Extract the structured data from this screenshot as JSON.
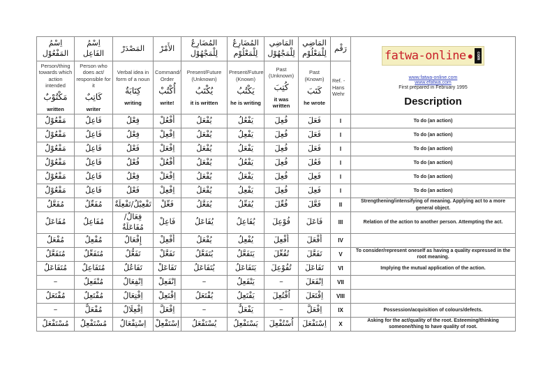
{
  "header_arabic": [
    "اِسْمُ المَفْعُوْل",
    "اِسْمُ الفَاعِل",
    "المَصْدَرْ",
    "الأَمْرْ",
    "المُضَارِعُ لِلْمَجْهُوْل",
    "المُضَارِعُ لِلْمَعْلُوْم",
    "المَاضِي لِلْمَجْهُوْل",
    "المَاضِي لِلْمَعْلُوْم",
    "رَقْم"
  ],
  "header_english": [
    "Person/thing towards which action intended",
    "Person who does act/ responsible for it",
    "Verbal idea in form of a noun",
    "Command/ Order",
    "Present/Future (Unknown)",
    "Present/Future (Known)",
    "Past (Unknown)",
    "Past (Known)"
  ],
  "example_arabic": [
    "مَكْتُوْبٌ",
    "كَاتِبٌ",
    "كِتَابَةٌ",
    "أُكْتُبْ",
    "يُكْتَبُ",
    "يَكْتُبُ",
    "كُتِبَ",
    "كَتَبَ"
  ],
  "example_english": [
    "written",
    "writer",
    "writing",
    "write!",
    "it is written",
    "he is writing",
    "it was written",
    "he wrote"
  ],
  "ref_label": "Ref. - Hans Wehr",
  "logo": {
    "text": "fatwa-online",
    "suffix": "com",
    "bg": "#f5efc0",
    "color": "#c8202a"
  },
  "links": [
    "www.fatwa-online.com",
    "www.efatwa.com"
  ],
  "first_prepared": "First prepared in February 1995",
  "description_title": "Description",
  "rows": [
    {
      "num": "I",
      "desc": "To do (an action)",
      "forms": [
        "مَفْعُوْلٌ",
        "فَاعِلٌ",
        "فِعْلٌ",
        "أُفْعُلْ",
        "يُفْعَلُ",
        "يَفْعُلُ",
        "فُعِلَ",
        "فَعَلَ"
      ]
    },
    {
      "num": "I",
      "desc": "To do (an action)",
      "forms": [
        "مَفْعُوْلٌ",
        "فَاعِلٌ",
        "فِعْلٌ",
        "اِفْعِلْ",
        "يُفْعَلُ",
        "يَفْعِلُ",
        "فُعِلَ",
        "فَعَلَ"
      ]
    },
    {
      "num": "I",
      "desc": "To do (an action)",
      "forms": [
        "مَفْعُوْلٌ",
        "فَاعِلٌ",
        "فَعْلٌ",
        "اِفْعَلْ",
        "يُفْعَلُ",
        "يَفْعَلُ",
        "فُعِلَ",
        "فَعَلَ"
      ]
    },
    {
      "num": "I",
      "desc": "To do (an action)",
      "forms": [
        "مَفْعُوْلٌ",
        "فَاعِلٌ",
        "فُعْلٌ",
        "أُفْعُلْ",
        "يُفْعَلُ",
        "يَفْعُلُ",
        "فُعِلَ",
        "فَعُلَ"
      ]
    },
    {
      "num": "I",
      "desc": "To do (an action)",
      "forms": [
        "مَفْعُوْلٌ",
        "فَاعِلٌ",
        "فِعْلٌ",
        "اِفْعَلْ",
        "يُفْعَلُ",
        "يَفْعَلُ",
        "فُعِلَ",
        "فَعِلَ"
      ]
    },
    {
      "num": "I",
      "desc": "To do (an action)",
      "forms": [
        "مَفْعُوْلٌ",
        "فَاعِلٌ",
        "فَعْلٌ",
        "اِفْعِلْ",
        "يُفْعَلُ",
        "يَفْعِلُ",
        "فُعِلَ",
        "فَعِلَ"
      ]
    },
    {
      "num": "II",
      "desc": "Strengthening/intensifying of meaning. Applying act to a more general object.",
      "forms": [
        "مُفَعَّلٌ",
        "مُفَعِّلٌ",
        "تَفْعِيْلٌ/تَفْعِلَةٌ",
        "فَعِّلْ",
        "يُفَعَّلُ",
        "يُفَعِّلُ",
        "فُعِّلَ",
        "فَعَّلَ"
      ]
    },
    {
      "num": "III",
      "desc": "Relation of the action to another person. Attempting the act.",
      "forms": [
        "مُفَاعَلٌ",
        "مُفَاعِلٌ",
        "فِعَالٌ/مُفَاعَلَةٌ",
        "فَاعِلْ",
        "يُفَاعَلُ",
        "يُفَاعِلُ",
        "فُوْعِلَ",
        "فَاعَلَ"
      ]
    },
    {
      "num": "IV",
      "desc": "",
      "forms": [
        "مُفْعَلٌ",
        "مُفْعِلٌ",
        "إِفْعَالٌ",
        "أَفْعِلْ",
        "يُفْعَلُ",
        "يُفْعِلُ",
        "أُفْعِلَ",
        "أَفْعَلَ"
      ]
    },
    {
      "num": "V",
      "desc": "To consider/represent oneself as having a quality expressed in the root meaning.",
      "forms": [
        "مُتَفَعَّلٌ",
        "مُتَفَعِّلٌ",
        "تَفَعُّلٌ",
        "تَفَعَّلْ",
        "يُتَفَعَّلُ",
        "يَتَفَعَّلُ",
        "تُفُعِّلَ",
        "تَفَعَّلَ"
      ]
    },
    {
      "num": "VI",
      "desc": "Implying the mutual application of the action.",
      "forms": [
        "مُتَفَاعَلٌ",
        "مُتَفَاعِلٌ",
        "تَفَاعُلٌ",
        "تَفَاعَلْ",
        "يُتَفَاعَلُ",
        "يَتَفَاعَلُ",
        "تُفُوْعِلَ",
        "تَفَاعَلَ"
      ]
    },
    {
      "num": "VII",
      "desc": "",
      "forms": [
        "–",
        "مُنْفَعِلٌ",
        "اِنْفِعَالٌ",
        "اِنْفَعِلْ",
        "–",
        "يَنْفَعِلُ",
        "–",
        "اِنْفَعَلَ"
      ]
    },
    {
      "num": "VIII",
      "desc": "",
      "forms": [
        "مُفْتَعَلٌ",
        "مُفْتَعِلٌ",
        "اِفْتِعَالٌ",
        "اِفْتَعِلْ",
        "يُفْتَعَلُ",
        "يَفْتَعِلُ",
        "اُفْتُعِلَ",
        "اِفْتَعَلَ"
      ]
    },
    {
      "num": "IX",
      "desc": "Possession/acquisition of colours/defects.",
      "forms": [
        "–",
        "مُفْعَلٌّ",
        "اِفْعِلَالٌ",
        "اِفْعَلَّ",
        "–",
        "يَفْعَلُّ",
        "–",
        "اِفْعَلَّ"
      ]
    },
    {
      "num": "X",
      "desc": "Asking for the act/quality of the root. Esteeming/thinking someone/thing to have quality of root.",
      "forms": [
        "مُسْتَفْعَلٌ",
        "مُسْتَفْعِلٌ",
        "اِسْتِفْعَالٌ",
        "اِسْتَفْعِلْ",
        "يُسْتَفْعَلُ",
        "يَسْتَفْعِلُ",
        "اُسْتُفْعِلَ",
        "اِسْتَفْعَلَ"
      ]
    }
  ]
}
